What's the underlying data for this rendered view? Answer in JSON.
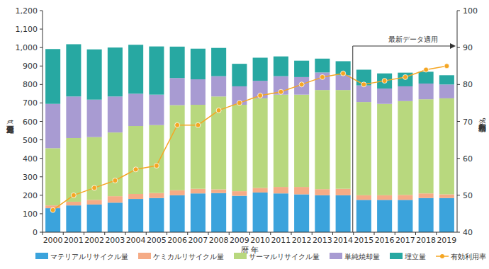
{
  "chart_data": {
    "type": "bar",
    "stacked": true,
    "grid": false,
    "legend": "bottom",
    "x_label": "暦 年",
    "y_label": "処理処分量（万t）",
    "y2_label": "有効利用率（%）",
    "annotations": [
      {
        "text": "最新データ適用",
        "x": "2015"
      }
    ],
    "categories": [
      "2000",
      "2001",
      "2002",
      "2003",
      "2004",
      "2005",
      "2006",
      "2007",
      "2008",
      "2009",
      "2010",
      "2011",
      "2012",
      "2013",
      "2014",
      "2015",
      "2016",
      "2017",
      "2018",
      "2019"
    ],
    "ylim": [
      0,
      1200
    ],
    "yticks": [
      0,
      100,
      200,
      300,
      400,
      500,
      600,
      700,
      800,
      900,
      {
        "value": 1000,
        "label": "1,000"
      },
      {
        "value": 1100,
        "label": "1,100"
      },
      {
        "value": 1200,
        "label": "1,200"
      }
    ],
    "y2lim": [
      40,
      100
    ],
    "y2ticks": [
      40,
      50,
      60,
      70,
      80,
      90,
      100
    ],
    "series": [
      {
        "name": "マテリアルリサイクル量",
        "type": "bar",
        "color": "#3ba3dc",
        "values": [
          130,
          145,
          150,
          160,
          180,
          185,
          200,
          210,
          212,
          197,
          215,
          210,
          205,
          200,
          200,
          175,
          175,
          175,
          185,
          185
        ]
      },
      {
        "name": "ケミカルリサイクル量",
        "type": "bar",
        "color": "#f5ab86",
        "values": [
          15,
          20,
          25,
          35,
          27,
          27,
          27,
          25,
          20,
          25,
          25,
          35,
          40,
          33,
          35,
          25,
          25,
          27,
          25,
          20
        ]
      },
      {
        "name": "サーマルリサイクル量",
        "type": "bar",
        "color": "#b8d87e",
        "values": [
          310,
          345,
          340,
          345,
          368,
          368,
          461,
          455,
          503,
          468,
          485,
          500,
          500,
          537,
          535,
          505,
          495,
          508,
          510,
          520
        ]
      },
      {
        "name": "単純焼却量",
        "type": "bar",
        "color": "#a89bd2",
        "values": [
          240,
          225,
          203,
          195,
          175,
          165,
          147,
          138,
          110,
          100,
          95,
          100,
          95,
          95,
          80,
          90,
          83,
          80,
          85,
          75
        ]
      },
      {
        "name": "埋立量",
        "type": "bar",
        "color": "#27a8a2",
        "values": [
          297,
          283,
          272,
          265,
          265,
          261,
          170,
          166,
          153,
          122,
          125,
          107,
          89,
          75,
          76,
          85,
          82,
          74,
          64,
          50
        ]
      },
      {
        "name": "有効利用率（%）",
        "type": "line",
        "axis": "y2",
        "color": "#f5a623",
        "marker": "circle",
        "values": [
          46,
          50,
          52,
          54,
          57,
          58,
          69,
          69,
          73,
          75,
          77,
          78,
          80,
          82,
          83,
          80,
          81,
          82,
          84,
          85
        ]
      }
    ]
  }
}
